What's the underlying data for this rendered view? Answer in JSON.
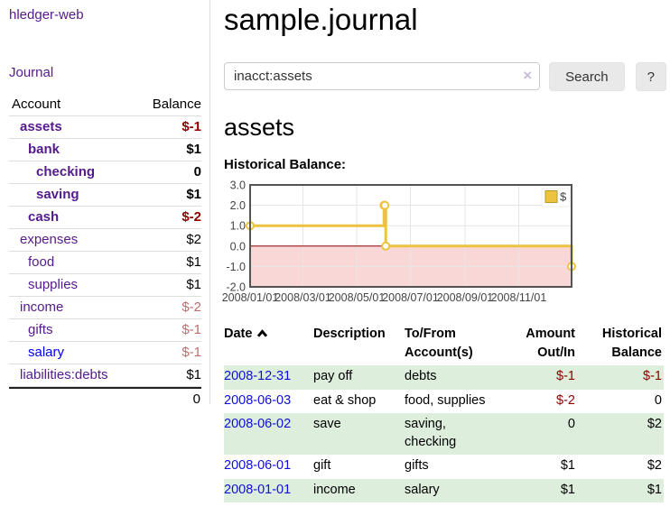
{
  "colors": {
    "link_purple": "#551a8b",
    "link_blue": "#0000ee",
    "negative_red": "#8b0000",
    "muted_negative": "#b96f6f",
    "row_green": "#ddeedd",
    "series_yellow": "#edc240",
    "chart_negative_fill": "#f9d7d7"
  },
  "sidebar": {
    "app_title": "hledger-web",
    "nav_journal": "Journal",
    "accounts_table": {
      "col_account": "Account",
      "col_balance": "Balance",
      "rows": [
        {
          "name": "assets",
          "indent": 1,
          "bold": true,
          "balance": "$-1",
          "negative": true
        },
        {
          "name": "bank",
          "indent": 2,
          "bold": true,
          "balance": "$1"
        },
        {
          "name": "checking",
          "indent": 3,
          "bold": true,
          "balance": "0"
        },
        {
          "name": "saving",
          "indent": 3,
          "bold": true,
          "balance": "$1"
        },
        {
          "name": "cash",
          "indent": 2,
          "bold": true,
          "balance": "$-2",
          "negative": true
        },
        {
          "name": "expenses",
          "indent": 1,
          "balance": "$2"
        },
        {
          "name": "food",
          "indent": 2,
          "balance": "$1"
        },
        {
          "name": "supplies",
          "indent": 2,
          "balance": "$1"
        },
        {
          "name": "income",
          "indent": 1,
          "balance": "$-2",
          "muted": true
        },
        {
          "name": "gifts",
          "indent": 2,
          "balance": "$-1",
          "muted": true
        },
        {
          "name": "salary",
          "indent": 2,
          "balance": "$-1",
          "muted": true,
          "unvisited": true
        },
        {
          "name": "liabilities:debts",
          "indent": 1,
          "balance": "$1"
        }
      ],
      "total": "0"
    }
  },
  "header": {
    "title": "sample.journal"
  },
  "search": {
    "query": "inacct:assets",
    "clear_icon": "×",
    "button_label": "Search",
    "help_label": "?"
  },
  "account_page": {
    "heading": "assets",
    "chart_label": "Historical Balance:"
  },
  "chart_data": {
    "type": "line",
    "title": "Historical Balance",
    "step": true,
    "x_range": [
      "2008-01-01",
      "2008-12-31"
    ],
    "ylim": [
      -2,
      3
    ],
    "y_ticks": [
      {
        "label": "3.0",
        "value": 3
      },
      {
        "label": "2.0",
        "value": 2
      },
      {
        "label": "1.0",
        "value": 1
      },
      {
        "label": "0.0",
        "value": 0
      },
      {
        "label": "-1.0",
        "value": -1
      },
      {
        "label": "-2.0",
        "value": -2
      }
    ],
    "x_ticks": [
      {
        "label": "2008/01/01",
        "date": "2008-01-01"
      },
      {
        "label": "2008/03/01",
        "date": "2008-03-01"
      },
      {
        "label": "2008/05/01",
        "date": "2008-05-01"
      },
      {
        "label": "2008/07/01",
        "date": "2008-07-01"
      },
      {
        "label": "2008/09/01",
        "date": "2008-09-01"
      },
      {
        "label": "2008/11/01",
        "date": "2008-11-01"
      }
    ],
    "series": [
      {
        "name": "$",
        "color": "#edc240",
        "points": [
          {
            "date": "2008-01-01",
            "value": 1
          },
          {
            "date": "2008-06-01",
            "value": 2
          },
          {
            "date": "2008-06-02",
            "value": 2
          },
          {
            "date": "2008-06-03",
            "value": 0
          },
          {
            "date": "2008-12-31",
            "value": -1
          }
        ]
      }
    ],
    "legend": {
      "label": "$",
      "position": "top-right"
    },
    "grid": true,
    "zero_line_color": "#8b0000",
    "negative_region_color": "#f9d7d7"
  },
  "register": {
    "columns": [
      {
        "line1": "Date",
        "line2": "",
        "sort_icon": "caret-up",
        "align": "left"
      },
      {
        "line1": "Description",
        "line2": "",
        "align": "left"
      },
      {
        "line1": "To/From",
        "line2": "Account(s)",
        "align": "left"
      },
      {
        "line1": "Amount",
        "line2": "Out/In",
        "align": "right"
      },
      {
        "line1": "Historical",
        "line2": "Balance",
        "align": "right"
      }
    ],
    "rows": [
      {
        "date": "2008-12-31",
        "description": "pay off",
        "accounts": "debts",
        "amount": "$-1",
        "amount_negative": true,
        "balance": "$-1",
        "balance_negative": true,
        "shaded": true
      },
      {
        "date": "2008-06-03",
        "description": "eat & shop",
        "accounts": "food, supplies",
        "amount": "$-2",
        "amount_negative": true,
        "balance": "0",
        "balance_negative": false,
        "shaded": false
      },
      {
        "date": "2008-06-02",
        "description": "save",
        "accounts": "saving, checking",
        "amount": "0",
        "amount_negative": false,
        "balance": "$2",
        "balance_negative": false,
        "shaded": true
      },
      {
        "date": "2008-06-01",
        "description": "gift",
        "accounts": "gifts",
        "amount": "$1",
        "amount_negative": false,
        "balance": "$2",
        "balance_negative": false,
        "shaded": false
      },
      {
        "date": "2008-01-01",
        "description": "income",
        "accounts": "salary",
        "amount": "$1",
        "amount_negative": false,
        "balance": "$1",
        "balance_negative": false,
        "shaded": true
      }
    ]
  }
}
